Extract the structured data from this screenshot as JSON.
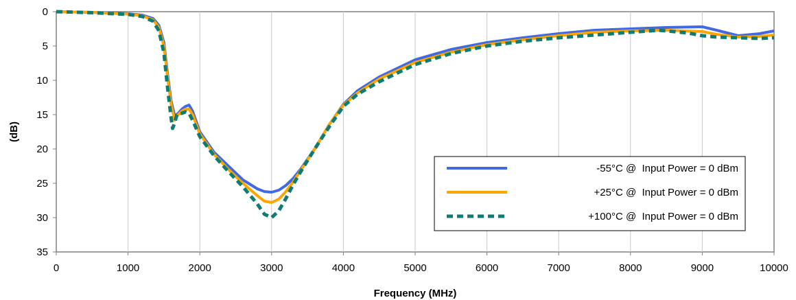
{
  "chart_data": {
    "type": "line",
    "title": "",
    "xlabel": "Frequency (MHz)",
    "ylabel": "(dB)",
    "xlim": [
      0,
      10000
    ],
    "ylim": [
      0,
      35
    ],
    "y_inverted": true,
    "x_ticks": [
      "0",
      "1000",
      "2000",
      "3000",
      "4000",
      "5000",
      "6000",
      "7000",
      "8000",
      "9000",
      "10000"
    ],
    "y_ticks": [
      "0",
      "5",
      "10",
      "15",
      "20",
      "25",
      "30",
      "35"
    ],
    "grid": "vertical",
    "legend_position": "bottom-right",
    "series": [
      {
        "name": "-55°C @  Input Power = 0 dBm",
        "color": "#4169E1",
        "style": "solid",
        "x": [
          0,
          500,
          1000,
          1200,
          1350,
          1430,
          1500,
          1550,
          1600,
          1650,
          1700,
          1750,
          1800,
          1850,
          1900,
          2000,
          2200,
          2400,
          2600,
          2800,
          2900,
          3000,
          3100,
          3200,
          3300,
          3400,
          3600,
          3800,
          4000,
          4200,
          4500,
          5000,
          5500,
          6000,
          6500,
          7000,
          7500,
          8000,
          8500,
          9000,
          9200,
          9500,
          9800,
          10000
        ],
        "y": [
          0,
          0.1,
          0.3,
          0.5,
          1.0,
          2.0,
          4.5,
          9.0,
          13.0,
          15.2,
          14.8,
          14.2,
          13.8,
          13.6,
          14.5,
          17.5,
          20.5,
          22.5,
          24.5,
          25.8,
          26.2,
          26.3,
          26.0,
          25.3,
          24.3,
          23.0,
          20.0,
          16.5,
          13.5,
          11.5,
          9.5,
          7.0,
          5.5,
          4.5,
          3.8,
          3.2,
          2.7,
          2.5,
          2.3,
          2.2,
          2.7,
          3.5,
          3.2,
          2.8
        ]
      },
      {
        "name": "+25°C @  Input Power = 0 dBm",
        "color": "#FFA500",
        "style": "solid",
        "x": [
          0,
          500,
          1000,
          1200,
          1350,
          1430,
          1500,
          1550,
          1600,
          1650,
          1700,
          1750,
          1800,
          1850,
          1900,
          2000,
          2200,
          2400,
          2600,
          2800,
          2900,
          3000,
          3100,
          3200,
          3300,
          3400,
          3600,
          3800,
          4000,
          4200,
          4500,
          5000,
          5500,
          6000,
          6500,
          7000,
          7500,
          8000,
          8500,
          9000,
          9200,
          9500,
          9800,
          10000
        ],
        "y": [
          0,
          0.1,
          0.35,
          0.6,
          1.2,
          2.3,
          5.0,
          9.5,
          13.5,
          15.8,
          15.0,
          14.5,
          14.2,
          14.2,
          15.0,
          17.8,
          20.8,
          23.0,
          25.0,
          26.8,
          27.6,
          27.8,
          27.3,
          26.2,
          24.8,
          23.2,
          20.0,
          16.5,
          13.6,
          11.8,
          9.8,
          7.4,
          5.9,
          4.8,
          4.1,
          3.5,
          3.0,
          2.8,
          2.7,
          2.9,
          3.3,
          3.7,
          3.6,
          3.4
        ]
      },
      {
        "name": "+100°C @  Input Power = 0 dBm",
        "color": "#0E7C73",
        "style": "dashed",
        "x": [
          0,
          500,
          1000,
          1200,
          1350,
          1430,
          1500,
          1550,
          1600,
          1620,
          1650,
          1680,
          1700,
          1750,
          1800,
          1850,
          1900,
          2000,
          2200,
          2400,
          2600,
          2800,
          2900,
          3000,
          3100,
          3200,
          3300,
          3400,
          3600,
          3800,
          4000,
          4200,
          4500,
          5000,
          5500,
          6000,
          6500,
          7000,
          7500,
          8000,
          8400,
          8800,
          9000,
          9200,
          9500,
          9800,
          10000
        ],
        "y": [
          0,
          0.15,
          0.4,
          0.7,
          1.4,
          2.8,
          6.0,
          11.0,
          15.5,
          17.0,
          16.2,
          15.0,
          14.8,
          14.8,
          14.6,
          14.8,
          15.8,
          18.2,
          21.0,
          23.3,
          25.5,
          28.0,
          29.5,
          30.0,
          29.0,
          27.2,
          25.2,
          23.4,
          20.0,
          16.8,
          13.8,
          12.0,
          10.2,
          7.7,
          6.1,
          5.0,
          4.3,
          3.8,
          3.4,
          3.0,
          2.7,
          3.1,
          3.5,
          3.7,
          3.8,
          3.9,
          3.8
        ]
      }
    ]
  }
}
